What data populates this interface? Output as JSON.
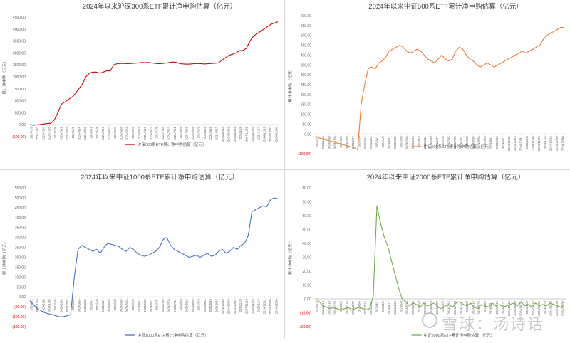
{
  "chart_data": [
    {
      "type": "line",
      "title": "2024年以来沪深300系ETF累计净申购估算（亿元）",
      "ylabel": "累计净申购（亿元）",
      "ylim": [
        -500,
        4500
      ],
      "yticks": [
        "(500.00)",
        "0.00",
        "500.00",
        "1000.00",
        "1500.00",
        "2000.00",
        "2500.00",
        "3000.00",
        "3500.00",
        "4000.00",
        "4500.00"
      ],
      "ytick_values": [
        -500,
        0,
        500,
        1000,
        1500,
        2000,
        2500,
        3000,
        3500,
        4000,
        4500
      ],
      "xticks": [
        "2024/1/2",
        "2024/1/10",
        "2024/1/18",
        "2024/1/26",
        "2024/2/5",
        "2024/2/19",
        "2024/2/27",
        "2024/3/6",
        "2024/3/14",
        "2024/3/22",
        "2024/4/1",
        "2024/4/9",
        "2024/4/17",
        "2024/4/25",
        "2024/5/8",
        "2024/5/16",
        "2024/5/24",
        "2024/6/3",
        "2024/6/11",
        "2024/6/19",
        "2024/6/27",
        "2024/7/5",
        "2024/7/15",
        "2024/7/23",
        "2024/7/31",
        "2024/8/8",
        "2024/8/16",
        "2024/8/26",
        "2024/9/3",
        "2024/9/11",
        "2024/9/19",
        "2024/9/27",
        "2024/10/15",
        "2024/10/23",
        "2024/10/31",
        "2024/11/8",
        "2024/11/18",
        "2024/11/26",
        "2024/12/4",
        "2024/12/12",
        "2024/12/20",
        "2024/12/30"
      ],
      "legend": "top-center",
      "series": [
        {
          "name": "沪深300系ETF累计净申购估算（亿元）",
          "color": "#d00000",
          "values": [
            0,
            -20,
            -10,
            10,
            30,
            50,
            60,
            200,
            500,
            850,
            950,
            1050,
            1150,
            1300,
            1500,
            1700,
            2000,
            2150,
            2200,
            2200,
            2150,
            2200,
            2250,
            2250,
            2500,
            2550,
            2560,
            2560,
            2550,
            2560,
            2570,
            2580,
            2600,
            2590,
            2600,
            2580,
            2560,
            2550,
            2560,
            2580,
            2600,
            2620,
            2600,
            2550,
            2540,
            2530,
            2540,
            2550,
            2560,
            2550,
            2540,
            2550,
            2560,
            2570,
            2580,
            2700,
            2800,
            2900,
            2950,
            3000,
            3100,
            3100,
            3200,
            3500,
            3700,
            3800,
            3900,
            4000,
            4100,
            4200,
            4250,
            4300
          ]
        }
      ]
    },
    {
      "type": "line",
      "title": "2024年以来中证500系ETF累计净申购估算（亿元）",
      "ylabel": "累计净申购（亿元）",
      "ylim": [
        -100,
        600
      ],
      "yticks": [
        "(100.00)",
        "0.00",
        "50.00",
        "100.00",
        "150.00",
        "200.00",
        "250.00",
        "300.00",
        "350.00",
        "400.00",
        "450.00",
        "500.00",
        "550.00",
        "600.00"
      ],
      "ytick_values": [
        -100,
        0,
        50,
        100,
        150,
        200,
        250,
        300,
        350,
        400,
        450,
        500,
        550,
        600
      ],
      "xticks": [
        "2024/1/2",
        "2024/1/10",
        "2024/1/18",
        "2024/1/26",
        "2024/2/5",
        "2024/2/19",
        "2024/2/27",
        "2024/3/6",
        "2024/3/14",
        "2024/3/22",
        "2024/4/1",
        "2024/4/9",
        "2024/4/17",
        "2024/4/25",
        "2024/5/8",
        "2024/5/16",
        "2024/5/24",
        "2024/6/3",
        "2024/6/11",
        "2024/6/19",
        "2024/6/27",
        "2024/7/5",
        "2024/7/15",
        "2024/7/23",
        "2024/7/31",
        "2024/8/8",
        "2024/8/16",
        "2024/8/26",
        "2024/9/3",
        "2024/9/11",
        "2024/9/19",
        "2024/9/27",
        "2024/10/15",
        "2024/10/23",
        "2024/10/31",
        "2024/11/8",
        "2024/11/18",
        "2024/11/26",
        "2024/12/4",
        "2024/12/12",
        "2024/12/20",
        "2024/12/30"
      ],
      "legend": "top-center",
      "series": [
        {
          "name": "中证500系ETF累计净申购估算（亿元）",
          "color": "#ed7d31",
          "values": [
            -10,
            -20,
            -25,
            -30,
            -35,
            -40,
            -45,
            -50,
            -55,
            -60,
            -65,
            -70,
            -80,
            150,
            250,
            330,
            340,
            330,
            360,
            370,
            390,
            420,
            430,
            440,
            450,
            440,
            420,
            410,
            420,
            430,
            420,
            400,
            380,
            370,
            360,
            380,
            400,
            380,
            370,
            380,
            420,
            440,
            430,
            400,
            380,
            370,
            350,
            340,
            350,
            360,
            350,
            340,
            350,
            360,
            370,
            380,
            390,
            400,
            410,
            420,
            410,
            420,
            430,
            440,
            450,
            480,
            500,
            510,
            520,
            530,
            540,
            540
          ]
        }
      ]
    },
    {
      "type": "line",
      "title": "2024年以来中证1000系ETF累计净申购估算（亿元）",
      "ylabel": "累计净申购（亿元）",
      "ylim": [
        -150,
        550
      ],
      "yticks": [
        "(150.00)",
        "(100.00)",
        "(50.00)",
        "0.00",
        "50.00",
        "100.00",
        "150.00",
        "200.00",
        "250.00",
        "300.00",
        "350.00",
        "400.00",
        "450.00",
        "500.00",
        "550.00"
      ],
      "ytick_values": [
        -150,
        -100,
        -50,
        0,
        50,
        100,
        150,
        200,
        250,
        300,
        350,
        400,
        450,
        500,
        550
      ],
      "xticks": [
        "2024/1/2",
        "2024/1/10",
        "2024/1/18",
        "2024/1/26",
        "2024/2/5",
        "2024/2/19",
        "2024/2/27",
        "2024/3/6",
        "2024/3/14",
        "2024/3/22",
        "2024/4/1",
        "2024/4/9",
        "2024/4/17",
        "2024/4/25",
        "2024/5/8",
        "2024/5/16",
        "2024/5/24",
        "2024/6/3",
        "2024/6/11",
        "2024/6/19",
        "2024/6/27",
        "2024/7/5",
        "2024/7/15",
        "2024/7/23",
        "2024/7/31",
        "2024/8/8",
        "2024/8/16",
        "2024/8/26",
        "2024/9/3",
        "2024/9/11",
        "2024/9/19",
        "2024/9/27",
        "2024/10/15",
        "2024/10/23",
        "2024/10/31",
        "2024/11/8",
        "2024/11/18",
        "2024/11/26",
        "2024/12/4",
        "2024/12/12",
        "2024/12/20",
        "2024/12/30"
      ],
      "legend": "bottom-center",
      "series": [
        {
          "name": "中证1000系ETF累计净申购估算（亿元）",
          "color": "#4472c4",
          "values": [
            -20,
            -40,
            -60,
            -70,
            -80,
            -85,
            -90,
            -95,
            -100,
            -100,
            -95,
            -90,
            100,
            240,
            260,
            250,
            240,
            230,
            240,
            220,
            250,
            270,
            265,
            260,
            255,
            240,
            230,
            250,
            240,
            220,
            210,
            205,
            210,
            220,
            230,
            250,
            290,
            300,
            260,
            240,
            230,
            220,
            210,
            200,
            205,
            210,
            200,
            210,
            220,
            205,
            210,
            230,
            240,
            220,
            230,
            250,
            240,
            260,
            270,
            310,
            430,
            440,
            450,
            460,
            455,
            490,
            500,
            495
          ]
        }
      ]
    },
    {
      "type": "line",
      "title": "2024年以来中证2000系ETF累计净申购估算（亿元）",
      "ylabel": "累计净申购（亿元）",
      "ylim": [
        -20,
        80
      ],
      "yticks": [
        "(20.00)",
        "(10.00)",
        "0.00",
        "10.00",
        "20.00",
        "30.00",
        "40.00",
        "50.00",
        "60.00",
        "70.00",
        "80.00"
      ],
      "ytick_values": [
        -20,
        -10,
        0,
        10,
        20,
        30,
        40,
        50,
        60,
        70,
        80
      ],
      "xticks": [
        "2024/1/2",
        "2024/1/10",
        "2024/1/18",
        "2024/1/26",
        "2024/2/5",
        "2024/2/19",
        "2024/2/27",
        "2024/3/6",
        "2024/3/14",
        "2024/3/22",
        "2024/4/1",
        "2024/4/9",
        "2024/4/17",
        "2024/4/25",
        "2024/5/8",
        "2024/5/16",
        "2024/5/24",
        "2024/6/3",
        "2024/6/11",
        "2024/6/19",
        "2024/6/27",
        "2024/7/5",
        "2024/7/15",
        "2024/7/23",
        "2024/7/31",
        "2024/8/8",
        "2024/8/16",
        "2024/8/26",
        "2024/9/3",
        "2024/9/11",
        "2024/9/19",
        "2024/9/27",
        "2024/10/15",
        "2024/10/23",
        "2024/10/31",
        "2024/11/8",
        "2024/11/18",
        "2024/11/26",
        "2024/12/4",
        "2024/12/12",
        "2024/12/20",
        "2024/12/30"
      ],
      "legend": "bottom-center",
      "series": [
        {
          "name": "中证2000系ETF累计净申购估算（亿元）",
          "color": "#70ad47",
          "values": [
            0,
            -2,
            -5,
            -6,
            -7,
            -6,
            -7,
            -8,
            -7,
            -6,
            -8,
            -7,
            -6,
            -7,
            -8,
            -7,
            2,
            67,
            55,
            45,
            38,
            28,
            18,
            8,
            0,
            -2,
            -5,
            -3,
            -4,
            -6,
            -3,
            -5,
            -4,
            -3,
            -6,
            -7,
            -5,
            -4,
            -6,
            -3,
            -2,
            -4,
            -5,
            -3,
            -6,
            -7,
            -4,
            -5,
            -6,
            -3,
            -5,
            -4,
            -6,
            -5,
            -4,
            -3,
            -5,
            -2,
            -5,
            -4,
            -6,
            -3,
            -5,
            -4,
            -5,
            -3,
            -4,
            -5,
            -6,
            -4
          ]
        }
      ]
    }
  ],
  "watermark": {
    "text": "雪球：汤诗话"
  }
}
